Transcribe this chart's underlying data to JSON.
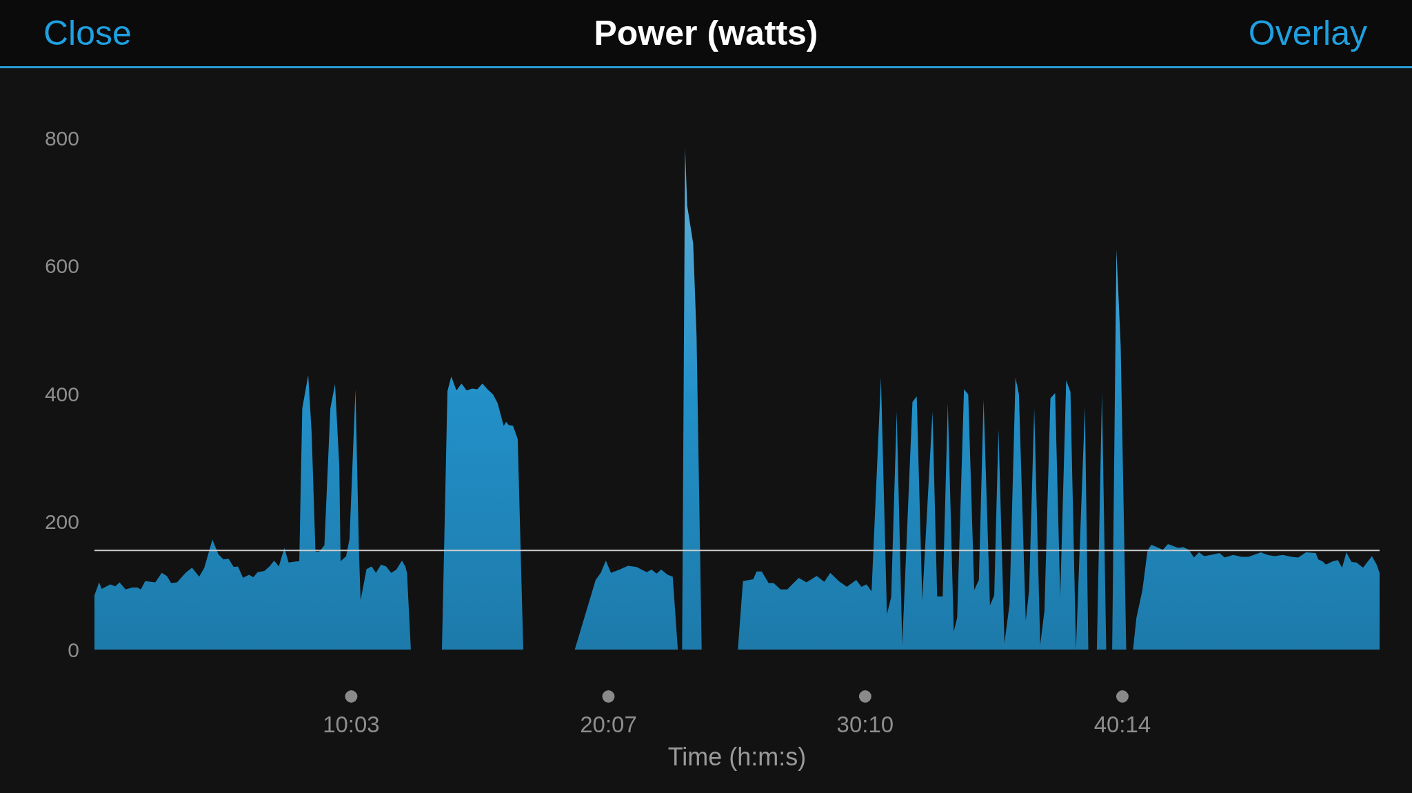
{
  "chart_data": {
    "type": "area",
    "title": "Power (watts)",
    "xlabel": "Time (h:m:s)",
    "annotations": [
      "Close",
      "Overlay"
    ],
    "x": [
      0,
      11,
      17,
      37,
      49,
      59,
      73,
      89,
      101,
      109,
      119,
      143,
      158,
      170,
      180,
      194,
      214,
      229,
      246,
      258,
      277,
      291,
      303,
      315,
      327,
      337,
      349,
      363,
      373,
      383,
      399,
      411,
      422,
      433,
      446,
      456,
      476,
      481,
      488,
      502,
      510,
      519,
      528,
      540,
      554,
      565,
      575,
      578,
      591,
      599,
      613,
      621,
      625,
      639,
      651,
      661,
      673,
      685,
      697,
      709,
      722,
      730,
      734,
      743,
      816,
      829,
      838,
      850,
      862,
      874,
      887,
      899,
      911,
      923,
      936,
      947,
      961,
      967,
      973,
      983,
      994,
      1007,
      1128,
      1177,
      1189,
      1201,
      1213,
      1233,
      1253,
      1273,
      1297,
      1308,
      1320,
      1331,
      1346,
      1358,
      1370,
      1380,
      1387,
      1392,
      1406,
      1414,
      1426,
      1511,
      1523,
      1547,
      1555,
      1567,
      1583,
      1595,
      1611,
      1627,
      1654,
      1672,
      1696,
      1714,
      1728,
      1748,
      1767,
      1789,
      1801,
      1813,
      1825,
      1847,
      1861,
      1871,
      1884,
      1897,
      1921,
      1931,
      1944,
      1968,
      1979,
      1992,
      2004,
      2018,
      2026,
      2042,
      2052,
      2066,
      2077,
      2088,
      2103,
      2113,
      2123,
      2137,
      2149,
      2163,
      2171,
      2187,
      2195,
      2207,
      2221,
      2231,
      2245,
      2256,
      2268,
      2282,
      2292,
      2305,
      2326,
      2334,
      2354,
      2366,
      2376,
      2390,
      2400,
      2410,
      2423,
      2439,
      2447,
      2461,
      2473,
      2482,
      2509,
      2521,
      2545,
      2557,
      2570,
      2582,
      2594,
      2606,
      2622,
      2642,
      2654,
      2674,
      2694,
      2710,
      2727,
      2739,
      2755,
      2771,
      2791,
      2811,
      2827,
      2845,
      2868,
      2874,
      2884,
      2892,
      2908,
      2920,
      2930,
      2940,
      2952,
      2964,
      2979,
      3000,
      3011,
      3018
    ],
    "values": [
      85,
      105,
      95,
      102,
      99,
      105,
      94,
      97,
      97,
      94,
      107,
      105,
      120,
      115,
      104,
      105,
      120,
      128,
      114,
      128,
      172,
      149,
      141,
      142,
      129,
      130,
      112,
      117,
      113,
      121,
      123,
      130,
      139,
      130,
      159,
      136,
      138,
      138,
      377,
      429,
      340,
      153,
      153,
      163,
      377,
      415,
      286,
      138,
      146,
      173,
      407,
      157,
      77,
      126,
      130,
      120,
      133,
      130,
      120,
      125,
      139,
      130,
      120,
      0,
      0,
      404,
      427,
      405,
      416,
      405,
      408,
      407,
      416,
      407,
      399,
      385,
      350,
      356,
      351,
      350,
      329,
      0,
      0,
      109,
      120,
      139,
      120,
      125,
      131,
      129,
      121,
      125,
      119,
      125,
      117,
      114,
      0,
      0,
      785,
      694,
      635,
      490,
      0,
      0,
      107,
      110,
      122,
      122,
      104,
      104,
      94,
      94,
      112,
      105,
      115,
      106,
      120,
      107,
      98,
      109,
      98,
      102,
      91,
      425,
      55,
      82,
      372,
      7,
      387,
      396,
      77,
      372,
      83,
      83,
      385,
      28,
      50,
      407,
      399,
      93,
      109,
      391,
      69,
      85,
      345,
      10,
      71,
      425,
      399,
      45,
      93,
      377,
      7,
      61,
      393,
      401,
      82,
      421,
      403,
      0,
      380,
      0,
      0,
      401,
      0,
      0,
      625,
      474,
      0,
      0,
      50,
      93,
      155,
      164,
      156,
      165,
      159,
      160,
      156,
      144,
      152,
      146,
      148,
      151,
      144,
      148,
      145,
      145,
      149,
      152,
      148,
      146,
      148,
      145,
      144,
      152,
      151,
      141,
      138,
      133,
      138,
      140,
      128,
      152,
      137,
      136,
      128,
      146,
      133,
      120
    ],
    "color": "#2290c8",
    "xlim": [
      0,
      3018
    ],
    "xticks": [
      {
        "value": 603,
        "label": "10:03"
      },
      {
        "value": 1207,
        "label": "20:07"
      },
      {
        "value": 1810,
        "label": "30:10"
      },
      {
        "value": 2414,
        "label": "40:14"
      }
    ],
    "ylim": [
      0,
      800
    ],
    "yticks": [
      0,
      200,
      400,
      600,
      800
    ],
    "ref_lines": [
      {
        "axis": "y",
        "value": 155,
        "color": "#cccccc"
      }
    ]
  }
}
